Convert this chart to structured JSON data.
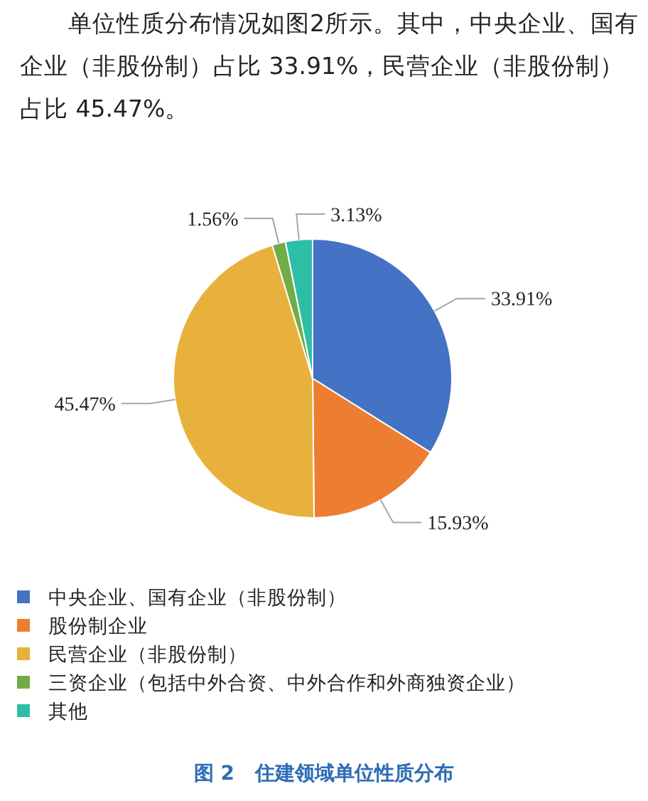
{
  "chart_data": {
    "type": "pie",
    "title": "图 2   住建领域单位性质分布",
    "annotations": [
      "单位性质分布情况如图2所示。其中，中央企业、国有企业（非股份制）占比 33.91%，民营企业（非股份制）占比 45.47%。"
    ],
    "categories": [
      "中央企业、国有企业（非股份制）",
      "股份制企业",
      "民营企业（非股份制）",
      "三资企业（包括中外合资、中外合作和外商独资企业）",
      "其他"
    ],
    "values": [
      33.91,
      15.93,
      45.47,
      1.56,
      3.13
    ],
    "colors": [
      "#4472c4",
      "#ed7d31",
      "#e8b13b",
      "#70ad47",
      "#2dbfa6"
    ],
    "value_labels": [
      "33.91%",
      "15.93%",
      "45.47%",
      "1.56%",
      "3.13%"
    ],
    "legend": "bottom"
  }
}
